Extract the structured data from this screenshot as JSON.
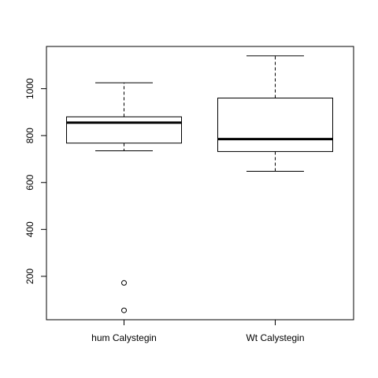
{
  "chart_data": {
    "type": "box",
    "title": "",
    "xlabel": "",
    "ylabel": "",
    "categories": [
      "hum Calystegin",
      "Wt Calystegin"
    ],
    "boxes": [
      {
        "name": "hum Calystegin",
        "whisker_low": 735,
        "q1": 768,
        "median": 855,
        "q3": 880,
        "whisker_high": 1025,
        "outliers": [
          172,
          55
        ]
      },
      {
        "name": "Wt Calystegin",
        "whisker_low": 648,
        "q1": 732,
        "median": 785,
        "q3": 960,
        "whisker_high": 1140,
        "outliers": []
      }
    ],
    "yticks": [
      200,
      400,
      600,
      800,
      1000
    ],
    "ylim": [
      15,
      1180
    ],
    "grid": false
  }
}
